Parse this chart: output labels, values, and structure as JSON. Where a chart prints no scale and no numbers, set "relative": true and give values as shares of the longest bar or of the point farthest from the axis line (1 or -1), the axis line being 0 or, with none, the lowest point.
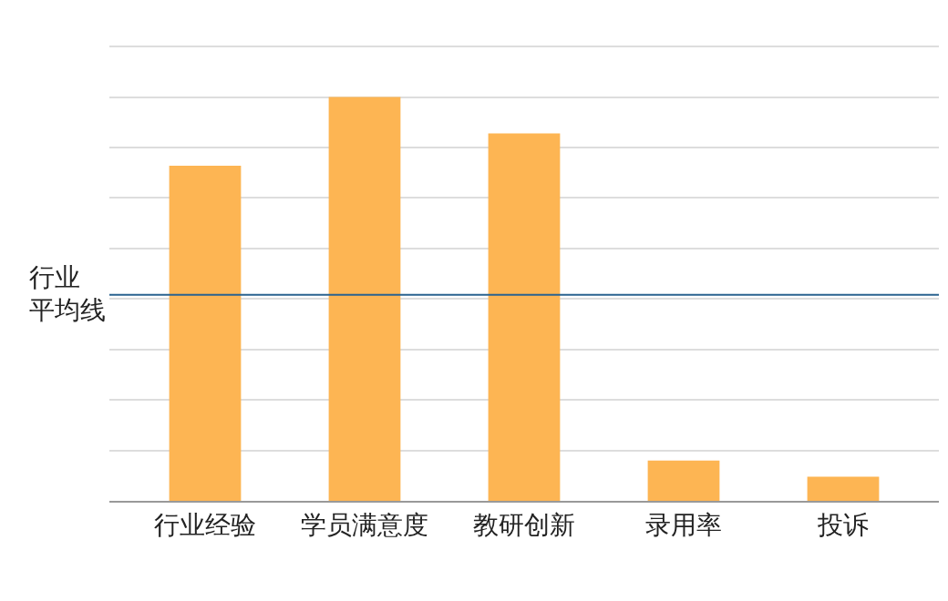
{
  "chart_data": {
    "type": "bar",
    "relative": true,
    "categories": [
      "行业经验",
      "学员满意度",
      "教研创新",
      "录用率",
      "投诉"
    ],
    "values": [
      0.83,
      1,
      0.91,
      0.1,
      0.06
    ],
    "color": "#fdb553",
    "grid": "y",
    "ref_lines": [
      {
        "axis": "y",
        "value": 0.51,
        "label": "行业平均线",
        "color": "#2a6390"
      }
    ]
  }
}
